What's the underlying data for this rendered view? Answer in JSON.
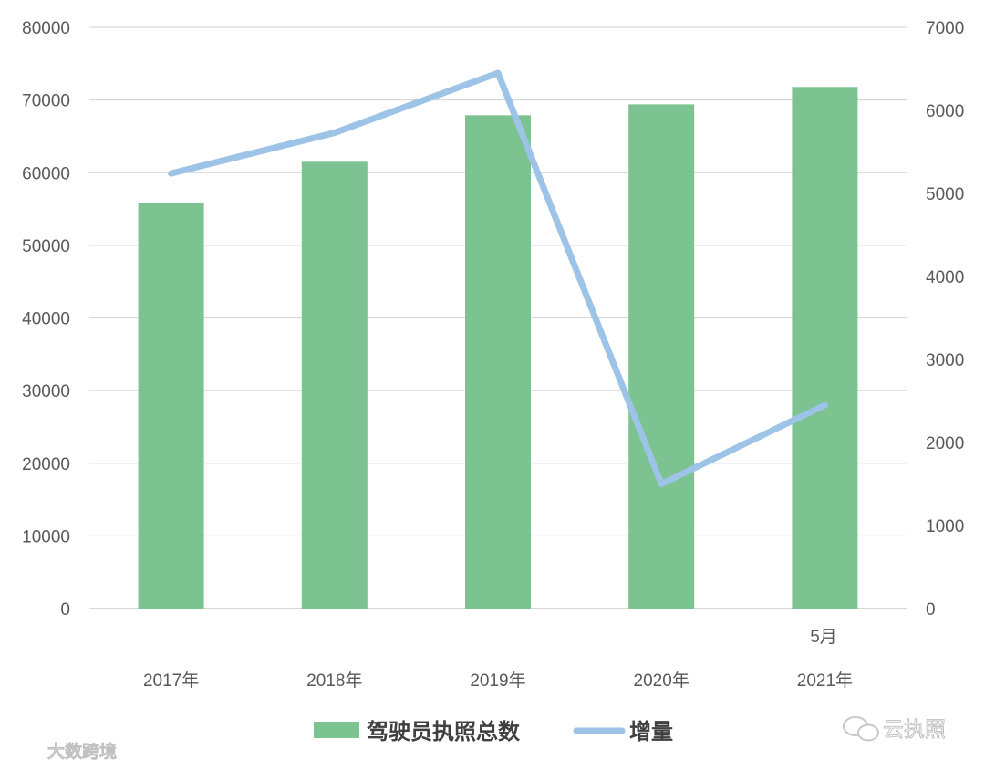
{
  "chart_data": {
    "type": "bar",
    "categories": [
      "2017年",
      "2018年",
      "2019年",
      "2020年",
      "2021年"
    ],
    "annotation": "5月",
    "series": [
      {
        "name": "驾驶员执照总数",
        "type": "bar",
        "axis": "left",
        "color": "#7DC291",
        "values": [
          55800,
          61500,
          67900,
          69400,
          71800
        ]
      },
      {
        "name": "增量",
        "type": "line",
        "axis": "right",
        "color": "#9DC3E6",
        "values": [
          5240,
          5730,
          6450,
          1500,
          2450
        ]
      }
    ],
    "y_left": {
      "min": 0,
      "max": 80000,
      "ticks": [
        0,
        10000,
        20000,
        30000,
        40000,
        50000,
        60000,
        70000,
        80000
      ]
    },
    "y_right": {
      "min": 0,
      "max": 7000,
      "ticks": [
        0,
        1000,
        2000,
        3000,
        4000,
        5000,
        6000,
        7000
      ]
    },
    "grid": true,
    "legend_position": "bottom"
  },
  "watermarks": {
    "left": "大数跨境",
    "right": "云执照"
  }
}
